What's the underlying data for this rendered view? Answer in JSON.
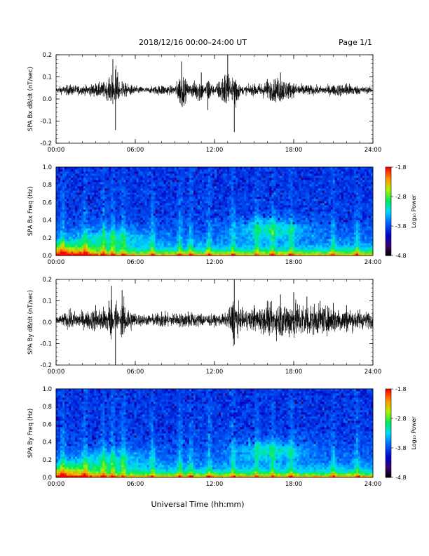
{
  "header": {
    "title": "2018/12/16  00:00–24:00 UT",
    "page": "Page 1/1"
  },
  "footer": {
    "xlabel": "Universal Time (hh:mm)"
  },
  "colorbar": {
    "label": "Log₁₀ Power",
    "ticks": [
      "-1.8",
      "-2.8",
      "-3.8",
      "-4.8"
    ],
    "range": [
      -4.8,
      -1.8
    ]
  },
  "chart_data": [
    {
      "type": "line",
      "ylabel": "SPA Bx dB/dt (nT/sec)",
      "xlim": [
        0,
        24
      ],
      "ylim": [
        -0.2,
        0.2
      ],
      "xticks": [
        "00:00",
        "06:00",
        "12:00",
        "18:00",
        "24:00"
      ],
      "yticks": [
        "0.2",
        "0.1",
        "0.0",
        "-0.1",
        "-0.2"
      ],
      "baseline": 0.04,
      "series": [
        {
          "x": [
            0,
            1,
            2,
            3,
            4,
            4.3,
            4.5,
            5,
            6,
            7,
            8,
            9,
            9.5,
            10,
            11,
            11.5,
            12,
            13,
            13.5,
            14,
            15,
            16,
            17,
            18,
            19,
            20,
            21,
            22,
            23,
            24
          ],
          "y": [
            0.04,
            0.06,
            0.05,
            0.07,
            0.09,
            0.18,
            -0.14,
            0.08,
            0.05,
            0.04,
            0.06,
            0.05,
            0.17,
            0.06,
            0.12,
            -0.05,
            0.04,
            0.2,
            -0.15,
            0.05,
            0.06,
            0.09,
            0.12,
            0.07,
            0.06,
            0.05,
            0.06,
            0.07,
            0.05,
            0.04
          ]
        }
      ]
    },
    {
      "type": "heatmap",
      "ylabel": "SPA Bx Freq (Hz)",
      "xlim": [
        0,
        24
      ],
      "ylim": [
        0.0,
        1.0
      ],
      "xticks": [
        "00:00",
        "06:00",
        "12:00",
        "18:00",
        "24:00"
      ],
      "yticks": [
        "1.0",
        "0.8",
        "0.6",
        "0.4",
        "0.2",
        "0.0"
      ],
      "enhancements": [
        {
          "t": 16.3,
          "f": 0.3,
          "power": -2.6
        },
        {
          "t": 4.3,
          "f": 0.2,
          "power": -3.0
        },
        {
          "t": 0.5,
          "f": 0.05,
          "power": -2.4
        }
      ]
    },
    {
      "type": "line",
      "ylabel": "SPA By dB/dt (nT/sec)",
      "xlim": [
        0,
        24
      ],
      "ylim": [
        -0.2,
        0.2
      ],
      "xticks": [
        "00:00",
        "06:00",
        "12:00",
        "18:00",
        "24:00"
      ],
      "yticks": [
        "0.2",
        "0.1",
        "0.0",
        "-0.1",
        "-0.2"
      ],
      "baseline": 0.01,
      "series": [
        {
          "x": [
            0,
            1,
            2,
            3,
            4,
            4.2,
            4.5,
            5,
            6,
            7,
            8,
            9,
            10,
            11,
            12,
            13,
            13.5,
            14,
            15,
            16,
            17,
            18,
            19,
            20,
            21,
            22,
            23,
            24
          ],
          "y": [
            0.01,
            0.06,
            0.05,
            0.08,
            0.1,
            0.17,
            -0.2,
            0.15,
            0.04,
            0.03,
            0.05,
            0.04,
            0.05,
            0.04,
            0.03,
            0.04,
            0.2,
            0.06,
            0.08,
            0.1,
            0.13,
            0.14,
            0.12,
            0.1,
            0.09,
            0.08,
            0.06,
            0.05
          ]
        }
      ]
    },
    {
      "type": "heatmap",
      "ylabel": "SPA By Freq (Hz)",
      "xlim": [
        0,
        24
      ],
      "ylim": [
        0.0,
        1.0
      ],
      "xticks": [
        "00:00",
        "06:00",
        "12:00",
        "18:00",
        "24:00"
      ],
      "yticks": [
        "1.0",
        "0.8",
        "0.6",
        "0.4",
        "0.2",
        "0.0"
      ],
      "enhancements": [
        {
          "t": 16.3,
          "f": 0.3,
          "power": -2.7
        },
        {
          "t": 4.3,
          "f": 0.2,
          "power": -3.0
        },
        {
          "t": 0.5,
          "f": 0.05,
          "power": -2.5
        }
      ]
    }
  ]
}
